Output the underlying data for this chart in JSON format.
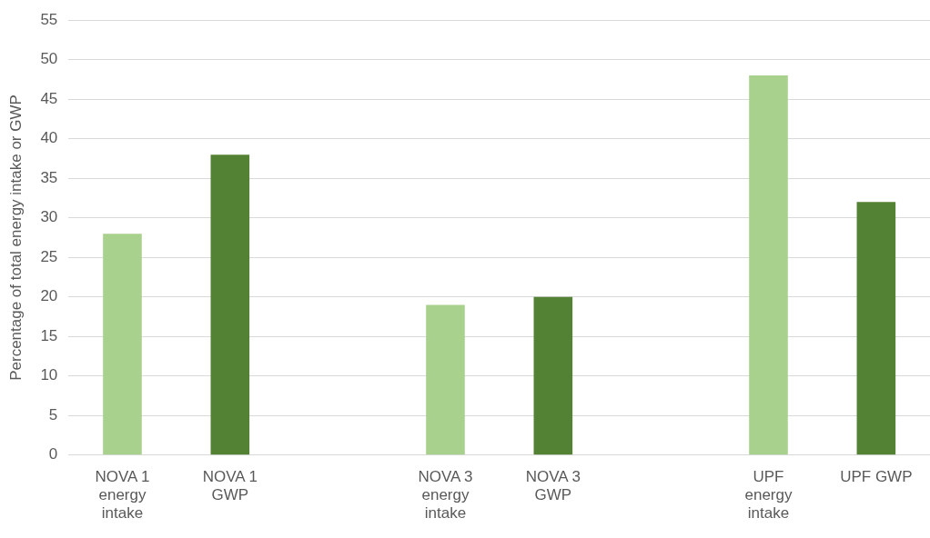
{
  "chart_data": {
    "type": "bar",
    "ylabel": "Percentage of total energy intake or GWP",
    "categories": [
      "NOVA 1 energy intake",
      "NOVA 1 GWP",
      null,
      "NOVA 3 energy intake",
      "NOVA 3 GWP",
      null,
      "UPF energy intake",
      "UPF GWP"
    ],
    "values": [
      28,
      38,
      null,
      19,
      20,
      null,
      48,
      32
    ],
    "colors": [
      "#a9d18e",
      "#548235",
      null,
      "#a9d18e",
      "#548235",
      null,
      "#a9d18e",
      "#548235"
    ],
    "ylim": [
      0,
      55
    ],
    "yticks": [
      0,
      5,
      10,
      15,
      20,
      25,
      30,
      35,
      40,
      45,
      50,
      55
    ],
    "grid": "y",
    "legend": false
  }
}
